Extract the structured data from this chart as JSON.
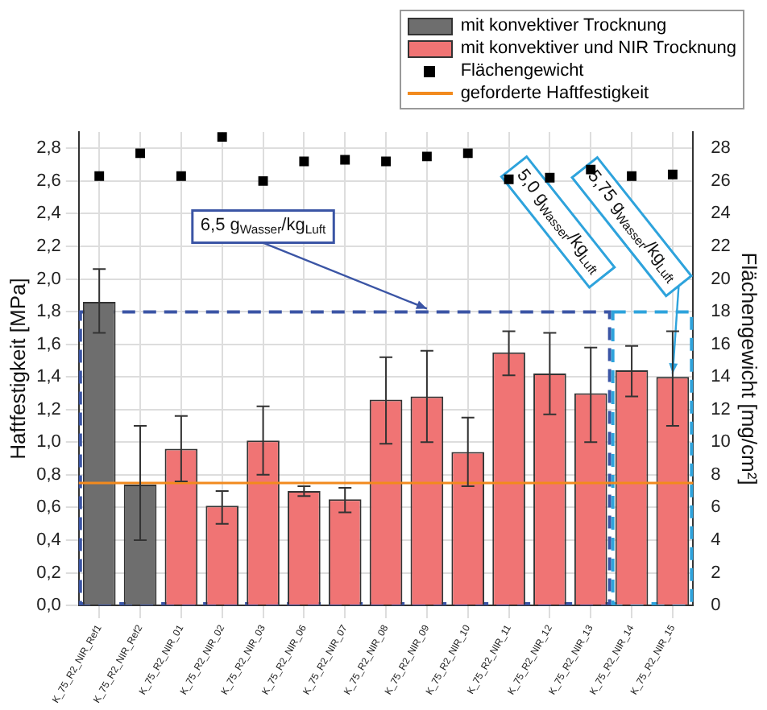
{
  "chart_data": {
    "type": "bar",
    "xlabel": null,
    "ylabel": "Haftfestigkeit [MPa]",
    "y2label": "Flächengewicht [mg/cm²]",
    "categories": [
      "K_75_R2_NIR_Ref1",
      "K_75_R2_NIR_Ref2",
      "K_75_R2_NIR_01",
      "K_75_R2_NIR_02",
      "K_75_R2_NIR_03",
      "K_75_R2_NIR_06",
      "K_75_R2_NIR_07",
      "K_75_R2_NIR_08",
      "K_75_R2_NIR_09",
      "K_75_R2_NIR_10",
      "K_75_R2_NIR_11",
      "K_75_R2_NIR_12",
      "K_75_R2_NIR_13",
      "K_75_R2_NIR_14",
      "K_75_R2_NIR_15"
    ],
    "series": [
      {
        "name": "mit konvektiver Trocknung",
        "color": "#6e6e6e",
        "values": [
          1.86,
          0.74,
          null,
          null,
          null,
          null,
          null,
          null,
          null,
          null,
          null,
          null,
          null,
          null,
          null
        ],
        "errors": [
          [
            1.67,
            2.06
          ],
          [
            0.4,
            1.1
          ],
          null,
          null,
          null,
          null,
          null,
          null,
          null,
          null,
          null,
          null,
          null,
          null,
          null
        ]
      },
      {
        "name": "mit konvektiver und NIR Trocknung",
        "color": "#f07474",
        "values": [
          null,
          null,
          0.96,
          0.61,
          1.01,
          0.7,
          0.65,
          1.26,
          1.28,
          0.94,
          1.55,
          1.42,
          1.3,
          1.44,
          1.4
        ],
        "errors": [
          null,
          null,
          [
            0.76,
            1.16
          ],
          [
            0.5,
            0.7
          ],
          [
            0.8,
            1.22
          ],
          [
            0.67,
            0.73
          ],
          [
            0.57,
            0.72
          ],
          [
            0.99,
            1.52
          ],
          [
            1.0,
            1.56
          ],
          [
            0.73,
            1.15
          ],
          [
            1.41,
            1.68
          ],
          [
            1.17,
            1.67
          ],
          [
            1.0,
            1.58
          ],
          [
            1.28,
            1.59
          ],
          [
            1.1,
            1.68
          ]
        ]
      },
      {
        "name": "Flächengewicht",
        "type": "scatter",
        "axis": "y2",
        "color": "#000000",
        "marker": "square",
        "values": [
          26.3,
          27.7,
          26.3,
          28.7,
          26.0,
          27.2,
          27.3,
          27.2,
          27.5,
          27.7,
          26.1,
          26.2,
          26.7,
          26.3,
          26.4
        ]
      }
    ],
    "ylim": [
      0,
      2.9
    ],
    "yticks": [
      {
        "value": 0,
        "label": "0,0"
      },
      {
        "value": 0.2,
        "label": "0,2"
      },
      {
        "value": 0.4,
        "label": "0,4"
      },
      {
        "value": 0.6,
        "label": "0,6"
      },
      {
        "value": 0.8,
        "label": "0,8"
      },
      {
        "value": 1.0,
        "label": "1,0"
      },
      {
        "value": 1.2,
        "label": "1,2"
      },
      {
        "value": 1.4,
        "label": "1,4"
      },
      {
        "value": 1.6,
        "label": "1,6"
      },
      {
        "value": 1.8,
        "label": "1,8"
      },
      {
        "value": 2.0,
        "label": "2,0"
      },
      {
        "value": 2.2,
        "label": "2,2"
      },
      {
        "value": 2.4,
        "label": "2,4"
      },
      {
        "value": 2.6,
        "label": "2,6"
      },
      {
        "value": 2.8,
        "label": "2,8"
      }
    ],
    "y2lim": [
      0,
      29
    ],
    "y2ticks": [
      0,
      2,
      4,
      6,
      8,
      10,
      12,
      14,
      16,
      18,
      20,
      22,
      24,
      26,
      28
    ],
    "ref_lines": [
      {
        "axis": "y",
        "value": 0.75,
        "label": "geforderte Haftfestigkeit",
        "color": "#f28a1e",
        "line_style": "solid"
      }
    ],
    "annotations": [
      "6,5 g$_{Wasser}$/kg$_{Luft}$",
      "5,0 g$_{Wasser}$/kg$_{Luft}$",
      {
        "text": "5,75 g$_{Wasser}$/kg$_{Luft}$",
        "x": "K_75_R2_NIR_15",
        "y": 1.4
      }
    ],
    "grid": true,
    "legend": "top right"
  }
}
